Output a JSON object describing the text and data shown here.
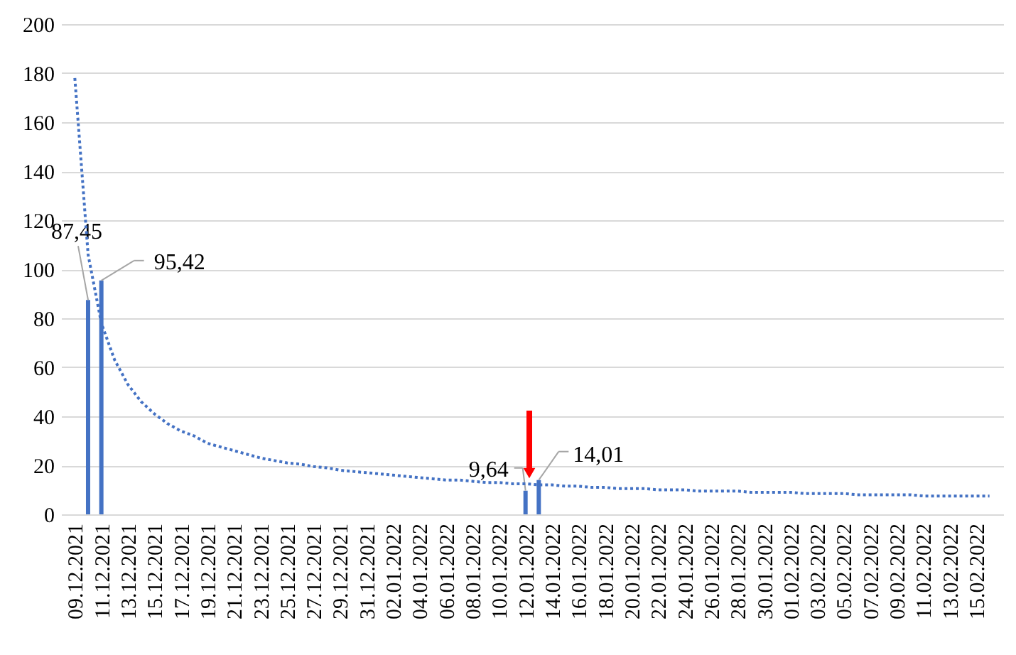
{
  "chart_data": {
    "type": "bar",
    "categories": [
      "09.12.2021",
      null,
      "11.12.2021",
      null,
      "13.12.2021",
      null,
      "15.12.2021",
      null,
      "17.12.2021",
      null,
      "19.12.2021",
      null,
      "21.12.2021",
      null,
      "23.12.2021",
      null,
      "25.12.2021",
      null,
      "27.12.2021",
      null,
      "29.12.2021",
      null,
      "31.12.2021",
      null,
      "02.01.2022",
      null,
      "04.01.2022",
      null,
      "06.01.2022",
      null,
      "08.01.2022",
      null,
      "10.01.2022",
      null,
      "12.01.2022",
      null,
      "14.01.2022",
      null,
      "16.01.2022",
      null,
      "18.01.2022",
      null,
      "20.01.2022",
      null,
      "22.01.2022",
      null,
      "24.01.2022",
      null,
      "26.01.2022",
      null,
      "28.01.2022",
      null,
      "30.01.2022",
      null,
      "01.02.2022",
      null,
      "03.02.2022",
      null,
      "05.02.2022",
      null,
      "07.02.2022",
      null,
      "09.02.2022",
      null,
      "11.02.2022",
      null,
      "13.02.2022",
      null,
      "15.02.2022",
      null
    ],
    "ylim": [
      0,
      200
    ],
    "yticks": [
      0,
      20,
      40,
      60,
      80,
      100,
      120,
      140,
      160,
      180,
      200
    ],
    "grid": "y",
    "series": [
      {
        "color": "#4472c4",
        "values": [
          null,
          87.45,
          95.42,
          null,
          null,
          null,
          null,
          null,
          null,
          null,
          null,
          null,
          null,
          null,
          null,
          null,
          null,
          null,
          null,
          null,
          null,
          null,
          null,
          null,
          null,
          null,
          null,
          null,
          null,
          null,
          null,
          null,
          null,
          null,
          9.64,
          14.01,
          null,
          null,
          null,
          null,
          null,
          null,
          null,
          null,
          null,
          null,
          null,
          null,
          null,
          null,
          null,
          null,
          null,
          null,
          null,
          null,
          null,
          null,
          null,
          null,
          null,
          null,
          null,
          null,
          null,
          null,
          null,
          null,
          null,
          null
        ],
        "value_labels": [
          null,
          "87,45",
          "95,42",
          null,
          null,
          null,
          null,
          null,
          null,
          null,
          null,
          null,
          null,
          null,
          null,
          null,
          null,
          null,
          null,
          null,
          null,
          null,
          null,
          null,
          null,
          null,
          null,
          null,
          null,
          null,
          null,
          null,
          null,
          null,
          "9,64",
          "14,01",
          null,
          null,
          null,
          null,
          null,
          null,
          null,
          null,
          null,
          null,
          null,
          null,
          null,
          null,
          null,
          null,
          null,
          null,
          null,
          null,
          null,
          null,
          null,
          null,
          null,
          null,
          null,
          null,
          null,
          null,
          null,
          null,
          null,
          null
        ]
      },
      {
        "type": "line",
        "color": "#4472c4",
        "line_style": "dotted",
        "values": [
          178,
          106,
          78,
          63,
          53,
          46,
          41,
          37,
          34,
          32,
          29,
          27.5,
          26,
          24.5,
          23,
          22,
          21,
          20.5,
          19.5,
          19,
          18,
          17.5,
          17,
          16.5,
          16,
          15.5,
          15,
          14.5,
          14,
          14,
          13.5,
          13,
          13,
          12.5,
          12.5,
          12,
          12,
          11.5,
          11.5,
          11,
          11,
          10.5,
          10.5,
          10.5,
          10,
          10,
          10,
          9.5,
          9.5,
          9.5,
          9.5,
          9,
          9,
          9,
          9,
          8.5,
          8.5,
          8.5,
          8.5,
          8,
          8,
          8,
          8,
          8,
          7.5,
          7.5,
          7.5,
          7.5,
          7.5,
          7.5
        ]
      }
    ]
  }
}
